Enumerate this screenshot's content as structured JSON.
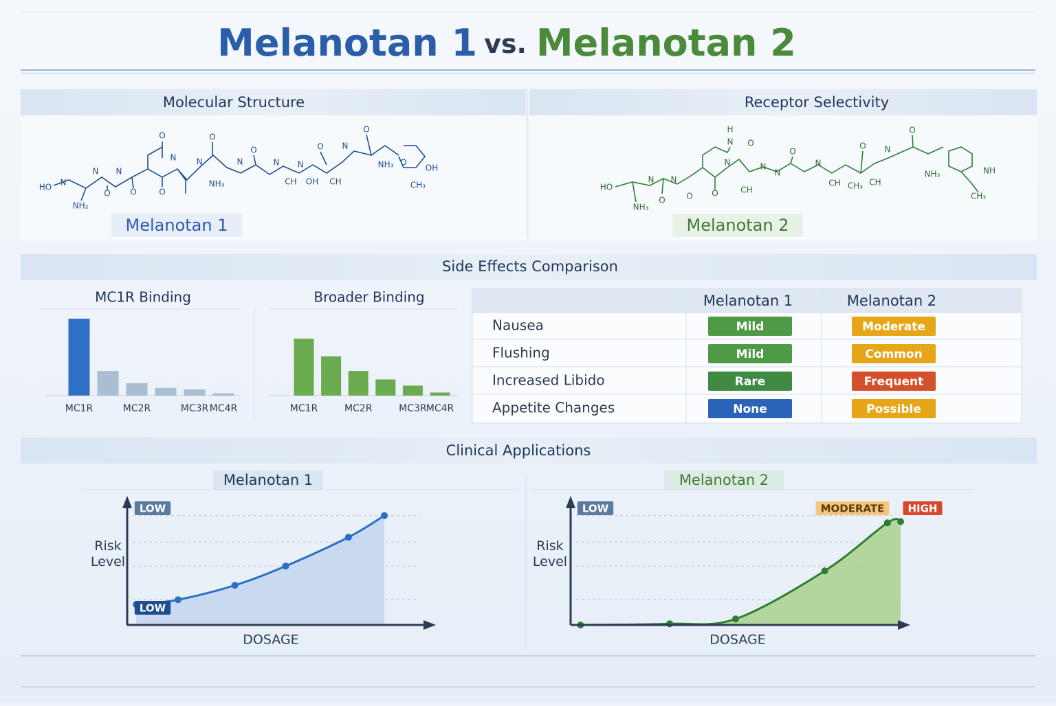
{
  "header": {
    "title_part_1": "Melanotan 1",
    "title_part_2": "vs.",
    "title_part_3": "Melanotan 2"
  },
  "sections": {
    "molecular_structure": "Molecular Structure",
    "receptor_selectivity": "Receptor Selectivity",
    "side_effects": "Side Effects Comparison",
    "clinical_applications": "Clinical Applications"
  },
  "molecules": [
    {
      "name": "Melanotan 1",
      "color": "#1f4e8c",
      "atoms": [
        "HO",
        "N",
        "NH₂",
        "N",
        "O",
        "N",
        "O",
        "O",
        "O",
        "N",
        "N",
        "O",
        "NH₃",
        "N",
        "O",
        "N",
        "N",
        "CH",
        "OH",
        "O",
        "CH",
        "N",
        "O",
        "NH₃",
        "O",
        "OH",
        "CH₃"
      ]
    },
    {
      "name": "Melanotan 2",
      "color": "#2e6b2e",
      "atoms": [
        "HO",
        "NH₃",
        "N",
        "O",
        "N",
        "O",
        "H",
        "N",
        "O",
        "N",
        "O",
        "CH",
        "N",
        "N",
        "O",
        "N",
        "CH",
        "CH₃",
        "O",
        "CH",
        "N",
        "O",
        "NH₃",
        "NH",
        "CH₃"
      ]
    }
  ],
  "chart_data": [
    {
      "type": "bar",
      "title": "MC1R Binding",
      "categories": [
        "MC1R",
        null,
        "MC2R",
        null,
        "MC3R",
        "MC4R"
      ],
      "values": [
        100,
        32,
        16,
        10,
        8,
        3
      ],
      "colors": [
        "#2f6fc5",
        "#a9bdd3",
        "#a9bdd3",
        "#a9bdd3",
        "#a9bdd3",
        "#a9bdd3"
      ],
      "ylim": [
        0,
        100
      ]
    },
    {
      "type": "bar",
      "title": "Broader Binding",
      "categories": [
        "MC1R",
        null,
        "MC2R",
        null,
        "MC3R",
        "MC4R"
      ],
      "values": [
        74,
        51,
        32,
        21,
        13,
        4
      ],
      "colors": [
        "#6aab4f",
        "#6aab4f",
        "#6aab4f",
        "#6aab4f",
        "#6aab4f",
        "#6aab4f"
      ],
      "ylim": [
        0,
        100
      ]
    },
    {
      "type": "line",
      "title": "Melanotan 1",
      "x_label": "DOSAGE",
      "y_label": "Risk Level",
      "x": [
        3,
        17,
        36,
        53,
        74,
        86
      ],
      "values": [
        17,
        21,
        33,
        49,
        73,
        91
      ],
      "xlim": [
        0,
        100
      ],
      "ylim": [
        0,
        100
      ],
      "color": "#2a6fc4",
      "area_color": "#c3d6ee",
      "annotations": [
        {
          "text": "LOW",
          "color": "#5b7a9e"
        },
        {
          "text": "LOW",
          "color": "#1f4e8c"
        }
      ]
    },
    {
      "type": "line",
      "title": "Melanotan 2",
      "x_label": "DOSAGE",
      "y_label": "Risk Level",
      "x": [
        3,
        30,
        50,
        77,
        96,
        100
      ],
      "values": [
        0,
        1,
        5,
        45,
        85,
        86
      ],
      "xlim": [
        0,
        100
      ],
      "ylim": [
        0,
        100
      ],
      "color": "#2e7d32",
      "area_color": "#a9d08e",
      "annotations": [
        {
          "text": "LOW",
          "color": "#5b7a9e"
        },
        {
          "text": "MODERATE",
          "color": "#f6c77a"
        },
        {
          "text": "HIGH",
          "color": "#d9472b"
        }
      ]
    }
  ],
  "side_effects_table": {
    "columns": [
      "Melanotan 1",
      "Melanotan 2"
    ],
    "rows": [
      {
        "label": "Nausea",
        "cells": [
          {
            "text": "Mild",
            "color": "#4f9a47"
          },
          {
            "text": "Moderate",
            "color": "#e6a617"
          }
        ]
      },
      {
        "label": "Flushing",
        "cells": [
          {
            "text": "Mild",
            "color": "#4f9a47"
          },
          {
            "text": "Common",
            "color": "#e6a617"
          }
        ]
      },
      {
        "label": "Increased Libido",
        "cells": [
          {
            "text": "Rare",
            "color": "#3f8a40"
          },
          {
            "text": "Frequent",
            "color": "#d4502a"
          }
        ]
      },
      {
        "label": "Appetite Changes",
        "cells": [
          {
            "text": "None",
            "color": "#2a63b8"
          },
          {
            "text": "Possible",
            "color": "#e6a617"
          }
        ]
      }
    ]
  }
}
